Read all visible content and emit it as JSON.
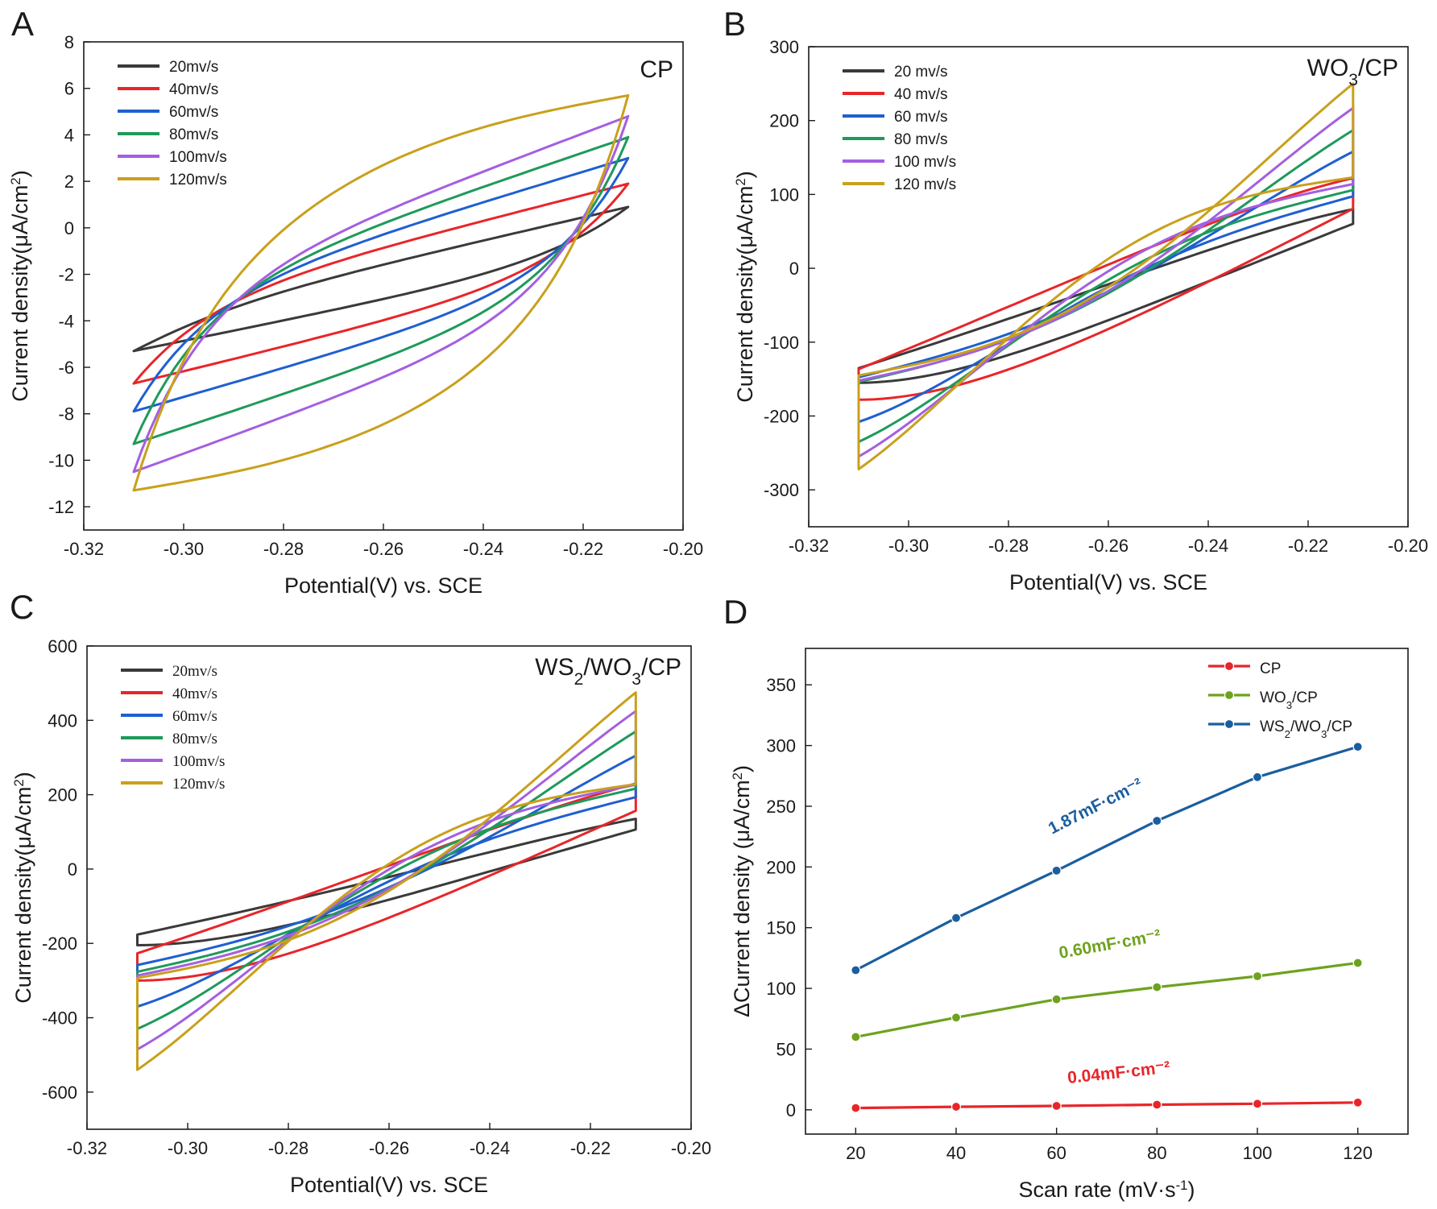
{
  "figure": {
    "description_labels": [
      "A",
      "B",
      "C",
      "D"
    ]
  },
  "chart_data": [
    {
      "type": "line",
      "panel": "A",
      "title": "CP",
      "xlabel": "Potential(V) vs. SCE",
      "ylabel": "Current density(μA/cm²)",
      "xlim": [
        -0.32,
        -0.2
      ],
      "ylim": [
        -13,
        8
      ],
      "xticks": [
        -0.32,
        -0.3,
        -0.28,
        -0.26,
        -0.24,
        -0.22,
        -0.2
      ],
      "xtick_labels": [
        "-0.32",
        "-0.30",
        "-0.28",
        "-0.26",
        "-0.24",
        "-0.22",
        "-0.20"
      ],
      "yticks": [
        -12,
        -10,
        -8,
        -6,
        -4,
        -2,
        0,
        2,
        4,
        6,
        8
      ],
      "ytick_labels": [
        "-12",
        "-10",
        "-8",
        "-6",
        "-4",
        "-2",
        "0",
        "2",
        "4",
        "6",
        "8"
      ],
      "legend_position": "top-left",
      "legend_serif": false,
      "series": [
        {
          "name": "20mv/s",
          "color": "#3a3a3a",
          "upper": [
            -4.0,
            0.9
          ],
          "lower": [
            -5.3,
            -1.0
          ],
          "rise": 0.9,
          "knee": 0.012
        },
        {
          "name": "40mv/s",
          "color": "#e8252a",
          "upper": [
            -3.5,
            1.9
          ],
          "lower": [
            -6.7,
            -1.5
          ],
          "rise": 0.8,
          "knee": 0.012
        },
        {
          "name": "60mv/s",
          "color": "#1f5fd0",
          "upper": [
            -3.4,
            3.0
          ],
          "lower": [
            -7.9,
            -1.8
          ],
          "rise": 0.85,
          "knee": 0.012
        },
        {
          "name": "80mv/s",
          "color": "#1e9a5a",
          "upper": [
            -3.3,
            3.9
          ],
          "lower": [
            -9.3,
            -2.3
          ],
          "rise": 0.9,
          "knee": 0.012
        },
        {
          "name": "100mv/s",
          "color": "#a45fe0",
          "upper": [
            -3.2,
            4.8
          ],
          "lower": [
            -10.5,
            -2.8
          ],
          "rise": 0.95,
          "knee": 0.012
        },
        {
          "name": "120mv/s",
          "color": "#c9a01c",
          "upper": [
            -3.2,
            5.7
          ],
          "lower": [
            -11.3,
            -3.2
          ],
          "rise": 1.0,
          "knee": 0.012
        }
      ]
    },
    {
      "type": "line",
      "panel": "B",
      "title": "WO3/CP",
      "title_main": "WO",
      "title_sub": "3",
      "title_tail": "/CP",
      "xlabel": "Potential(V) vs. SCE",
      "ylabel": "Current density(μA/cm²)",
      "xlim": [
        -0.32,
        -0.2
      ],
      "ylim": [
        -350,
        300
      ],
      "xticks": [
        -0.32,
        -0.3,
        -0.28,
        -0.26,
        -0.24,
        -0.22,
        -0.2
      ],
      "xtick_labels": [
        "-0.32",
        "-0.30",
        "-0.28",
        "-0.26",
        "-0.24",
        "-0.22",
        "-0.20"
      ],
      "yticks": [
        -300,
        -200,
        -100,
        0,
        100,
        200,
        300
      ],
      "ytick_labels": [
        "-300",
        "-200",
        "-100",
        "0",
        "100",
        "200",
        "300"
      ],
      "legend_position": "top-left",
      "legend_serif": false,
      "series": [
        {
          "name": "20 mv/s",
          "color": "#3a3a3a",
          "upper": [
            -155,
            80
          ],
          "lower": [
            -155,
            25
          ],
          "rise": 0.6,
          "knee": 0.04
        },
        {
          "name": "40 mv/s",
          "color": "#e8252a",
          "upper": [
            -178,
            122
          ],
          "lower": [
            -178,
            45
          ],
          "rise": 0.9,
          "knee": 0.05
        },
        {
          "name": "60 mv/s",
          "color": "#1f5fd0",
          "upper": [
            -208,
            158
          ],
          "lower": [
            -208,
            60
          ],
          "rise": 1.1,
          "knee": 0.055
        },
        {
          "name": "80 mv/s",
          "color": "#1e9a5a",
          "upper": [
            -235,
            187
          ],
          "lower": [
            -235,
            75
          ],
          "rise": 1.3,
          "knee": 0.06
        },
        {
          "name": "100 mv/s",
          "color": "#a45fe0",
          "upper": [
            -255,
            217
          ],
          "lower": [
            -255,
            90
          ],
          "rise": 1.45,
          "knee": 0.065
        },
        {
          "name": "120 mv/s",
          "color": "#c9a01c",
          "upper": [
            -272,
            250
          ],
          "lower": [
            -272,
            105
          ],
          "rise": 1.6,
          "knee": 0.07
        }
      ]
    },
    {
      "type": "line",
      "panel": "C",
      "title": "WS2/WO3/CP",
      "title_parts": [
        "WS",
        "2",
        "/WO",
        "3",
        "/CP"
      ],
      "xlabel": "Potential(V) vs. SCE",
      "ylabel": "Current density(μA/cm²)",
      "xlim": [
        -0.32,
        -0.2
      ],
      "ylim": [
        -700,
        600
      ],
      "xticks": [
        -0.32,
        -0.3,
        -0.28,
        -0.26,
        -0.24,
        -0.22,
        -0.2
      ],
      "xtick_labels": [
        "-0.32",
        "-0.30",
        "-0.28",
        "-0.26",
        "-0.24",
        "-0.22",
        "-0.20"
      ],
      "yticks": [
        -600,
        -400,
        -200,
        0,
        200,
        400,
        600
      ],
      "ytick_labels": [
        "-600",
        "-400",
        "-200",
        "0",
        "200",
        "400",
        "600"
      ],
      "legend_position": "top-left",
      "legend_serif": true,
      "series": [
        {
          "name": "20mv/s",
          "color": "#3a3a3a",
          "upper": [
            -205,
            135
          ],
          "lower": [
            -205,
            30
          ],
          "rise": 0.55,
          "knee": 0.04
        },
        {
          "name": "40mv/s",
          "color": "#e8252a",
          "upper": [
            -300,
            230
          ],
          "lower": [
            -300,
            50
          ],
          "rise": 0.9,
          "knee": 0.05
        },
        {
          "name": "60mv/s",
          "color": "#1f5fd0",
          "upper": [
            -370,
            305
          ],
          "lower": [
            -370,
            70
          ],
          "rise": 1.1,
          "knee": 0.055
        },
        {
          "name": "80mv/s",
          "color": "#1e9a5a",
          "upper": [
            -430,
            370
          ],
          "lower": [
            -430,
            90
          ],
          "rise": 1.3,
          "knee": 0.06
        },
        {
          "name": "100mv/s",
          "color": "#a45fe0",
          "upper": [
            -485,
            425
          ],
          "lower": [
            -485,
            110
          ],
          "rise": 1.45,
          "knee": 0.065
        },
        {
          "name": "120mv/s",
          "color": "#c9a01c",
          "upper": [
            -540,
            475
          ],
          "lower": [
            -540,
            130
          ],
          "rise": 1.6,
          "knee": 0.07
        }
      ]
    },
    {
      "type": "line",
      "panel": "D",
      "xlabel": "Scan rate (mV·s⁻¹)",
      "ylabel": "ΔCurrent density (μA/cm²)",
      "xlim": [
        10,
        130
      ],
      "ylim": [
        -20,
        380
      ],
      "xticks": [
        20,
        40,
        60,
        80,
        100,
        120
      ],
      "xtick_labels": [
        "20",
        "40",
        "60",
        "80",
        "100",
        "120"
      ],
      "yticks": [
        0,
        50,
        100,
        150,
        200,
        250,
        300,
        350
      ],
      "ytick_labels": [
        "0",
        "50",
        "100",
        "150",
        "200",
        "250",
        "300",
        "350"
      ],
      "legend_position": "top-right",
      "x": [
        20,
        40,
        60,
        80,
        100,
        120
      ],
      "series": [
        {
          "name": "CP",
          "color": "#e8252a",
          "values": [
            1.5,
            2.5,
            3.2,
            4.2,
            5.0,
            6.0
          ],
          "annotation": "0.04mF·cm⁻²"
        },
        {
          "name": "WO3/CP",
          "color": "#6ea21e",
          "values": [
            60,
            76,
            91,
            101,
            110,
            121
          ],
          "annotation": "0.60mF·cm⁻²"
        },
        {
          "name": "WS2/WO3/CP",
          "color": "#1b5e9e",
          "values": [
            115,
            158,
            197,
            238,
            274,
            299
          ],
          "annotation": "1.87mF·cm⁻²"
        }
      ]
    }
  ]
}
